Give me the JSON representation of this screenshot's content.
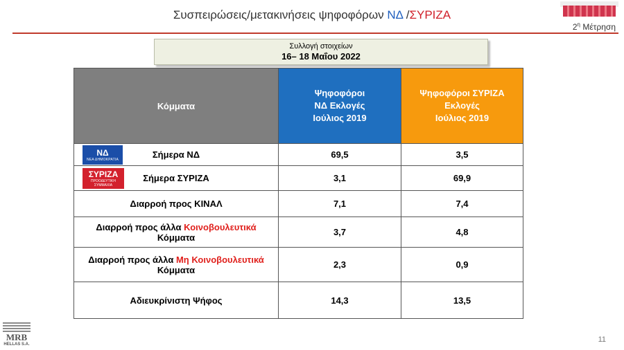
{
  "title": {
    "prefix": "Συσπειρώσεις/μετακινήσεις ψηφοφόρων ",
    "party_a": "ΝΔ",
    "separator": " /",
    "party_b": "ΣΥΡΙΖΑ"
  },
  "measurement_label": "Μέτρηση",
  "measurement_ordinal": "2",
  "measurement_sup": "η",
  "collection": {
    "label": "Συλλογή στοιχείων",
    "dates": "16– 18 Μαΐου 2022"
  },
  "table": {
    "header_party": "Κόμματα",
    "header_nd_lines": [
      "Ψηφοφόροι",
      "ΝΔ Εκλογές",
      "Ιούλιος 2019"
    ],
    "header_syr_lines": [
      "Ψηφοφόροι ΣΥΡΙΖΑ",
      "Εκλογές",
      "Ιούλιος 2019"
    ],
    "logo_nd": {
      "text": "ΝΔ",
      "sub": "ΝΕΑ ΔΗΜΟΚΡΑΤΙΑ"
    },
    "logo_syr": {
      "text": "ΣΥΡΙΖΑ",
      "sub": "ΠΡΟΟΔΕΥΤΙΚΗ ΣΥΜΜΑΧΙΑ"
    },
    "rows": [
      {
        "label": "Σήμερα ΝΔ",
        "nd": "69,5",
        "syr": "3,5"
      },
      {
        "label": "Σήμερα ΣΥΡΙΖΑ",
        "nd": "3,1",
        "syr": "69,9"
      },
      {
        "label": "Διαρροή προς ΚΙΝΑΛ",
        "nd": "7,1",
        "syr": "7,4"
      },
      {
        "label_pre": "Διαρροή προς άλλα ",
        "label_red": "Κοινοβουλευτικά",
        "label_post": "Κόμματα",
        "nd": "3,7",
        "syr": "4,8"
      },
      {
        "label_pre": "Διαρροή προς άλλα ",
        "label_red": "Μη Κοινοβουλευτικά",
        "label_post": "Κόμματα",
        "nd": "2,3",
        "syr": "0,9"
      },
      {
        "label": "Αδιευκρίνιστη Ψήφος",
        "nd": "14,3",
        "syr": "13,5"
      }
    ]
  },
  "footer": {
    "logo_text": "MRB",
    "logo_sub": "HELLAS S.A.",
    "page_number": "11"
  },
  "colors": {
    "nd_header": "#1f6fbf",
    "syriza_header": "#f79a0d",
    "party_header": "#7f7f7f",
    "accent_red": "#e0201c",
    "rule": "#c0392b"
  }
}
